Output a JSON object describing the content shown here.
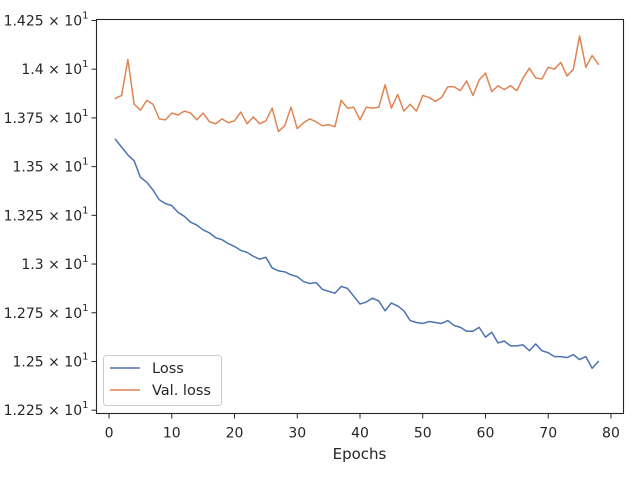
{
  "chart_data": {
    "type": "line",
    "title": "",
    "xlabel": "Epochs",
    "ylabel": "",
    "xlim": [
      -2,
      82
    ],
    "ylim": [
      12.233,
      14.255
    ],
    "xticks": [
      0,
      10,
      20,
      30,
      40,
      50,
      60,
      70,
      80
    ],
    "yticks": [
      {
        "value": 12.25,
        "mantissa": "1.225",
        "base": "10",
        "exp": "1"
      },
      {
        "value": 12.5,
        "mantissa": "1.25",
        "base": "10",
        "exp": "1"
      },
      {
        "value": 12.75,
        "mantissa": "1.275",
        "base": "10",
        "exp": "1"
      },
      {
        "value": 13.0,
        "mantissa": "1.3",
        "base": "10",
        "exp": "1"
      },
      {
        "value": 13.25,
        "mantissa": "1.325",
        "base": "10",
        "exp": "1"
      },
      {
        "value": 13.5,
        "mantissa": "1.35",
        "base": "10",
        "exp": "1"
      },
      {
        "value": 13.75,
        "mantissa": "1.375",
        "base": "10",
        "exp": "1"
      },
      {
        "value": 14.0,
        "mantissa": "1.4",
        "base": "10",
        "exp": "1"
      },
      {
        "value": 14.25,
        "mantissa": "1.425",
        "base": "10",
        "exp": "1"
      }
    ],
    "legend_position": "lower-left",
    "series": [
      {
        "name": "Loss",
        "color": "#4c72b0",
        "x": [
          1,
          2,
          3,
          4,
          5,
          6,
          7,
          8,
          9,
          10,
          11,
          12,
          13,
          14,
          15,
          16,
          17,
          18,
          19,
          20,
          21,
          22,
          23,
          24,
          25,
          26,
          27,
          28,
          29,
          30,
          31,
          32,
          33,
          34,
          35,
          36,
          37,
          38,
          39,
          40,
          41,
          42,
          43,
          44,
          45,
          46,
          47,
          48,
          49,
          50,
          51,
          52,
          53,
          54,
          55,
          56,
          57,
          58,
          59,
          60,
          61,
          62,
          63,
          64,
          65,
          66,
          67,
          68,
          69,
          70,
          71,
          72,
          73,
          74,
          75,
          76,
          77,
          78
        ],
        "values": [
          13.64,
          13.6,
          13.56,
          13.53,
          13.445,
          13.42,
          13.38,
          13.33,
          13.31,
          13.3,
          13.265,
          13.245,
          13.215,
          13.2,
          13.175,
          13.16,
          13.135,
          13.125,
          13.105,
          13.09,
          13.07,
          13.06,
          13.04,
          13.025,
          13.035,
          12.98,
          12.965,
          12.96,
          12.945,
          12.935,
          12.91,
          12.9,
          12.905,
          12.87,
          12.86,
          12.85,
          12.885,
          12.875,
          12.835,
          12.795,
          12.805,
          12.825,
          12.81,
          12.76,
          12.8,
          12.785,
          12.76,
          12.71,
          12.7,
          12.695,
          12.705,
          12.7,
          12.695,
          12.71,
          12.685,
          12.675,
          12.655,
          12.655,
          12.675,
          12.625,
          12.65,
          12.595,
          12.605,
          12.58,
          12.58,
          12.585,
          12.555,
          12.59,
          12.555,
          12.545,
          12.525,
          12.525,
          12.52,
          12.535,
          12.51,
          12.525,
          12.465,
          12.5
        ]
      },
      {
        "name": "Val. loss",
        "color": "#dd8452",
        "x": [
          1,
          2,
          3,
          4,
          5,
          6,
          7,
          8,
          9,
          10,
          11,
          12,
          13,
          14,
          15,
          16,
          17,
          18,
          19,
          20,
          21,
          22,
          23,
          24,
          25,
          26,
          27,
          28,
          29,
          30,
          31,
          32,
          33,
          34,
          35,
          36,
          37,
          38,
          39,
          40,
          41,
          42,
          43,
          44,
          45,
          46,
          47,
          48,
          49,
          50,
          51,
          52,
          53,
          54,
          55,
          56,
          57,
          58,
          59,
          60,
          61,
          62,
          63,
          64,
          65,
          66,
          67,
          68,
          69,
          70,
          71,
          72,
          73,
          74,
          75,
          76,
          77,
          78
        ],
        "values": [
          13.85,
          13.865,
          14.05,
          13.82,
          13.79,
          13.84,
          13.82,
          13.745,
          13.74,
          13.775,
          13.765,
          13.785,
          13.775,
          13.74,
          13.775,
          13.73,
          13.72,
          13.745,
          13.725,
          13.735,
          13.78,
          13.72,
          13.755,
          13.72,
          13.735,
          13.8,
          13.68,
          13.71,
          13.805,
          13.695,
          13.725,
          13.745,
          13.73,
          13.71,
          13.715,
          13.705,
          13.84,
          13.8,
          13.805,
          13.74,
          13.805,
          13.8,
          13.805,
          13.92,
          13.8,
          13.87,
          13.785,
          13.82,
          13.785,
          13.865,
          13.855,
          13.835,
          13.855,
          13.91,
          13.91,
          13.89,
          13.94,
          13.865,
          13.945,
          13.98,
          13.885,
          13.915,
          13.895,
          13.915,
          13.89,
          13.955,
          14.005,
          13.955,
          13.95,
          14.01,
          14.0,
          14.035,
          13.965,
          14.0,
          14.17,
          14.01,
          14.07,
          14.025
        ]
      }
    ]
  }
}
